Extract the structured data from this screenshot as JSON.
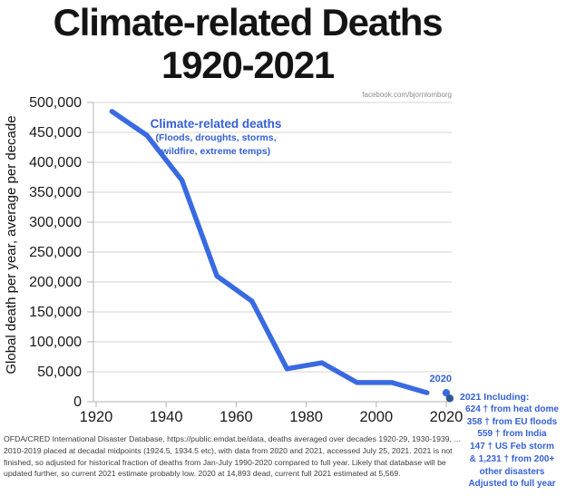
{
  "page": {
    "title_line1": "Climate-related Deaths",
    "title_line2": "1920-2021",
    "watermark": "facebook.com/bjornlomborg"
  },
  "chart_data": {
    "type": "line",
    "title": "Climate-related Deaths 1920-2021",
    "xlabel": "",
    "ylabel": "Global death per year, average per decade",
    "xlim": [
      1920,
      2023
    ],
    "ylim": [
      0,
      500000
    ],
    "grid": true,
    "legend_position": "none",
    "series": [
      {
        "name": "Climate-related deaths",
        "subtitle_lines": [
          "(Floods, droughts, storms,",
          "wildfire, extreme temps)"
        ],
        "x": [
          1924.5,
          1934.5,
          1944.5,
          1954.5,
          1964.5,
          1974.5,
          1984.5,
          1994.5,
          2004.5,
          2014.5
        ],
        "values": [
          485000,
          445000,
          370000,
          210000,
          168000,
          55000,
          65000,
          32000,
          32000,
          15000
        ],
        "color": "#3a6ae1"
      }
    ],
    "extra_points": [
      {
        "year": 2020,
        "value": 14893,
        "label": "2020",
        "color": "#3a6ae1"
      },
      {
        "year": 2021,
        "value": 5569,
        "label": "2021",
        "color": "#2a5c94"
      }
    ],
    "x_ticks": [
      {
        "value": 1920,
        "label": "1920"
      },
      {
        "value": 1940,
        "label": "1940"
      },
      {
        "value": 1960,
        "label": "1960"
      },
      {
        "value": 1980,
        "label": "1980"
      },
      {
        "value": 2000,
        "label": "2000"
      },
      {
        "value": 2020,
        "label": "2020"
      }
    ],
    "y_ticks": [
      {
        "value": 0,
        "label": "0"
      },
      {
        "value": 50000,
        "label": "50,000"
      },
      {
        "value": 100000,
        "label": "100,000"
      },
      {
        "value": 150000,
        "label": "150,000"
      },
      {
        "value": 200000,
        "label": "200,000"
      },
      {
        "value": 250000,
        "label": "250,000"
      },
      {
        "value": 300000,
        "label": "300,000"
      },
      {
        "value": 350000,
        "label": "350,000"
      },
      {
        "value": 400000,
        "label": "400,000"
      },
      {
        "value": 450000,
        "label": "450,000"
      },
      {
        "value": 500000,
        "label": "500,000"
      }
    ]
  },
  "annotation_2021": {
    "heading": "2021 Including:",
    "lines": [
      "624 † from heat dome",
      "358 † from EU floods",
      "559 † from India",
      "147 † US Feb storm",
      "& 1,231 † from 200+",
      "other disasters",
      "Adjusted to full year"
    ]
  },
  "footnote": {
    "lines": [
      "OFDA/CRED International Disaster Database, https://public.emdat.be/data, deaths averaged over decades 1920-29, 1930-1939, ...",
      "2010-2019 placed at decadal midpoints (1924.5, 1934.5 etc), with data from 2020 and 2021, accessed July 25, 2021. 2021 is not",
      "finished, so adjusted for historical fraction of deaths from Jan-July 1990-2020 compared to full year. Likely that database will be",
      "updated further, so current 2021 estimate probably low. 2020 at 14,893 dead, current full 2021 estimated at 5,569."
    ]
  },
  "colors": {
    "line_blue": "#3a6ae1",
    "annotation_blue": "#3560d6",
    "point_2021_blue": "#2a5c94",
    "gridline": "#d6d6d6",
    "axis": "#b3b3b3"
  }
}
